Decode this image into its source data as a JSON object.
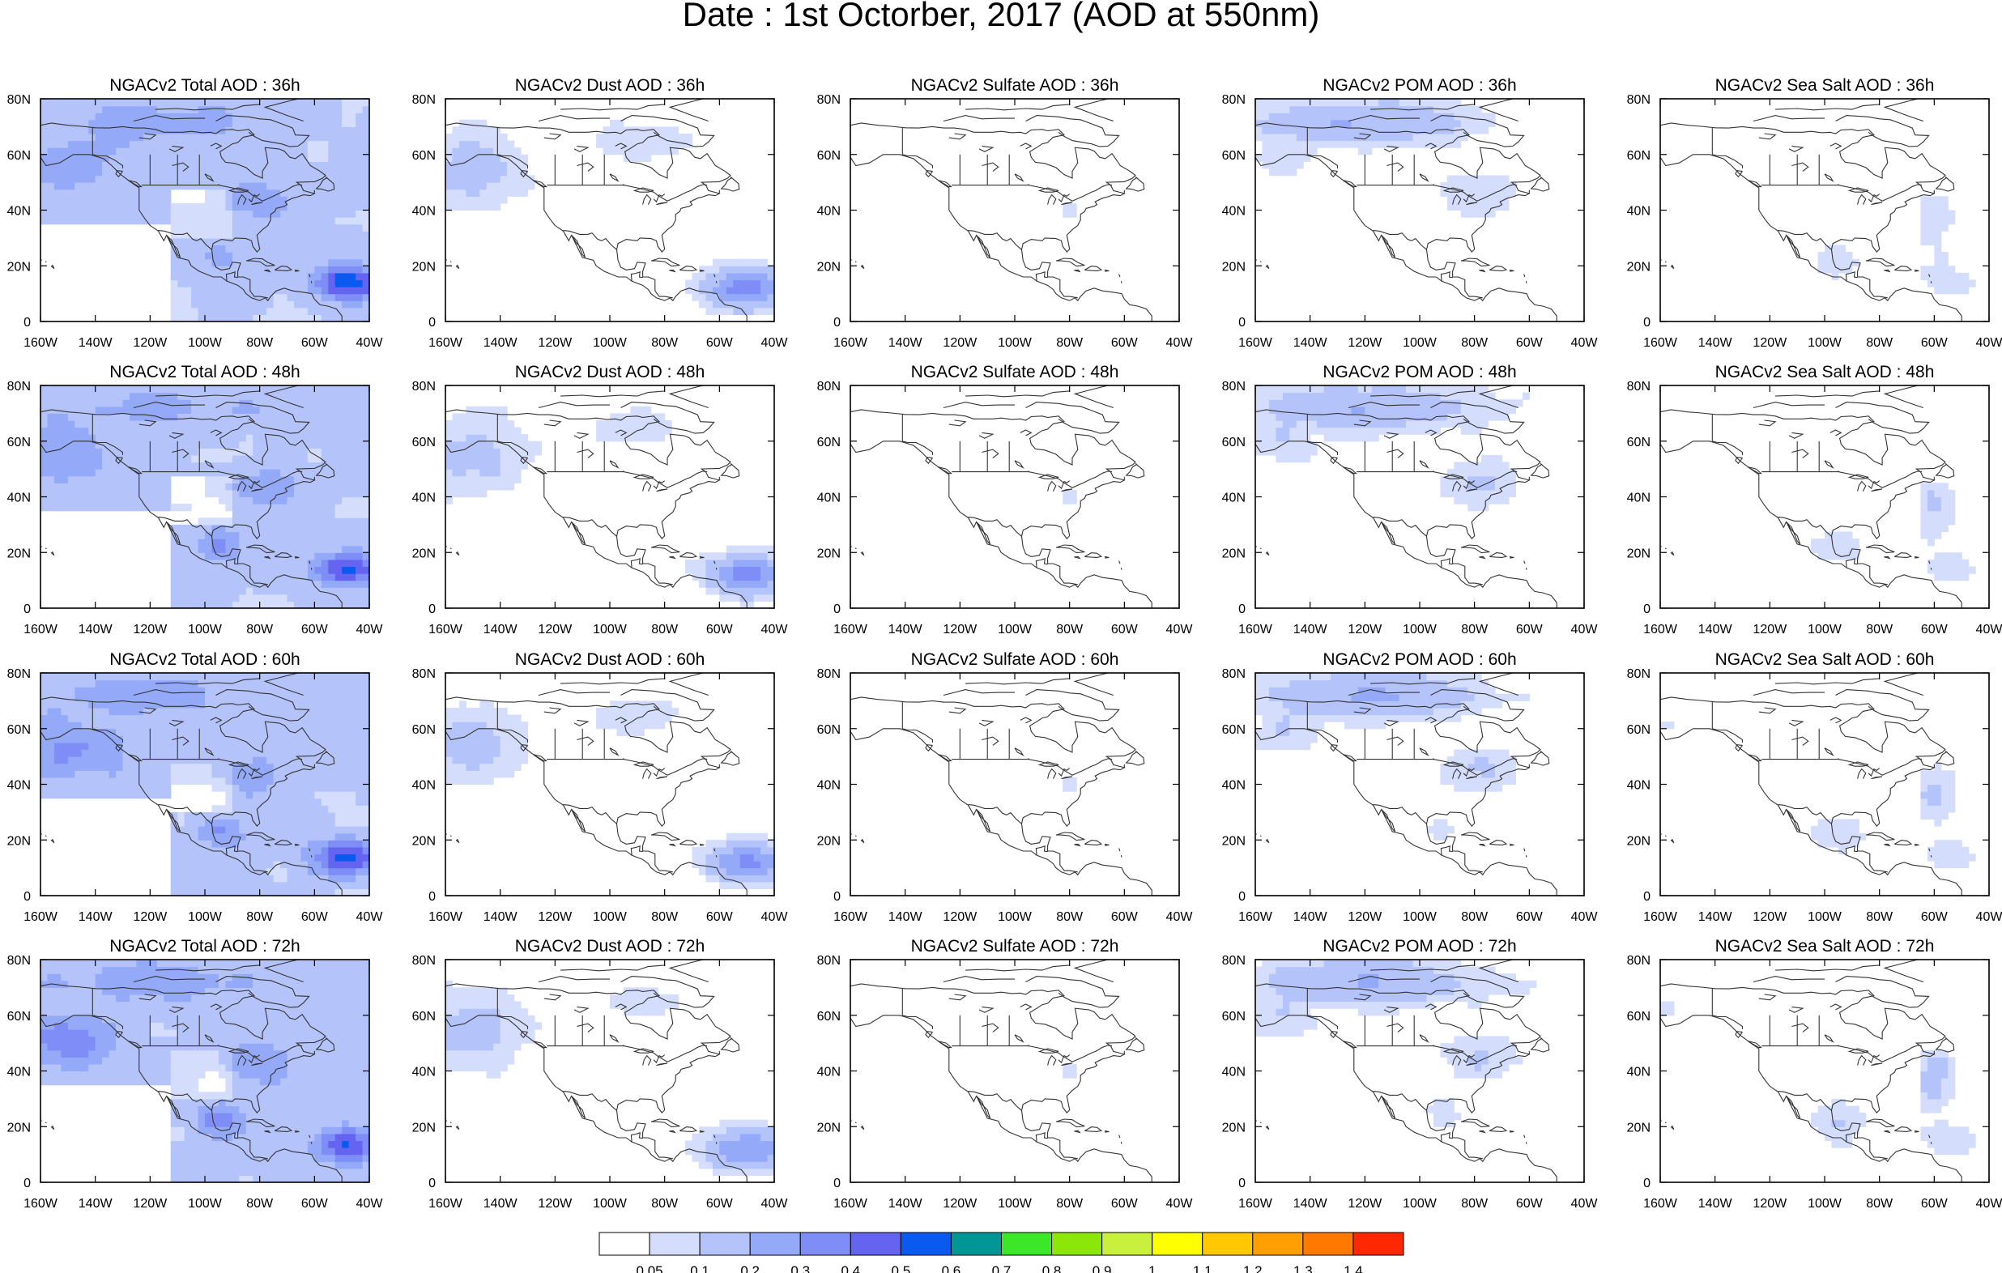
{
  "title": "Date : 1st Octorber, 2017 (AOD at 550nm)",
  "panels": [
    {
      "title": "NGACv2 Total AOD : 36h",
      "species": "total",
      "forecast_hour": 36
    },
    {
      "title": "NGACv2 Dust AOD : 36h",
      "species": "dust",
      "forecast_hour": 36
    },
    {
      "title": "NGACv2 Sulfate AOD : 36h",
      "species": "sulfate",
      "forecast_hour": 36
    },
    {
      "title": "NGACv2 POM AOD : 36h",
      "species": "pom",
      "forecast_hour": 36
    },
    {
      "title": "NGACv2 Sea Salt AOD : 36h",
      "species": "seasalt",
      "forecast_hour": 36
    },
    {
      "title": "NGACv2 Total AOD : 48h",
      "species": "total",
      "forecast_hour": 48
    },
    {
      "title": "NGACv2 Dust AOD : 48h",
      "species": "dust",
      "forecast_hour": 48
    },
    {
      "title": "NGACv2 Sulfate AOD : 48h",
      "species": "sulfate",
      "forecast_hour": 48
    },
    {
      "title": "NGACv2 POM AOD : 48h",
      "species": "pom",
      "forecast_hour": 48
    },
    {
      "title": "NGACv2 Sea Salt AOD : 48h",
      "species": "seasalt",
      "forecast_hour": 48
    },
    {
      "title": "NGACv2 Total AOD : 60h",
      "species": "total",
      "forecast_hour": 60
    },
    {
      "title": "NGACv2 Dust AOD : 60h",
      "species": "dust",
      "forecast_hour": 60
    },
    {
      "title": "NGACv2 Sulfate AOD : 60h",
      "species": "sulfate",
      "forecast_hour": 60
    },
    {
      "title": "NGACv2 POM AOD : 60h",
      "species": "pom",
      "forecast_hour": 60
    },
    {
      "title": "NGACv2 Sea Salt AOD : 60h",
      "species": "seasalt",
      "forecast_hour": 60
    },
    {
      "title": "NGACv2 Total AOD : 72h",
      "species": "total",
      "forecast_hour": 72
    },
    {
      "title": "NGACv2 Dust AOD : 72h",
      "species": "dust",
      "forecast_hour": 72
    },
    {
      "title": "NGACv2 Sulfate AOD : 72h",
      "species": "sulfate",
      "forecast_hour": 72
    },
    {
      "title": "NGACv2 POM AOD : 72h",
      "species": "pom",
      "forecast_hour": 72
    },
    {
      "title": "NGACv2 Sea Salt  AOD : 72h",
      "species": "seasalt",
      "forecast_hour": 72
    }
  ],
  "lon_ticks": [
    "160W",
    "140W",
    "120W",
    "100W",
    "80W",
    "60W",
    "40W"
  ],
  "lat_ticks": [
    "0",
    "20N",
    "40N",
    "60N",
    "80N"
  ],
  "lon_range": [
    -160,
    -40
  ],
  "lat_range": [
    0,
    80
  ],
  "colorbar": {
    "colors": [
      "#ffffff",
      "#d4defc",
      "#b4c4fa",
      "#94aaf8",
      "#7f8ef6",
      "#6464f0",
      "#0a5af0",
      "#009696",
      "#3ce628",
      "#8ce60a",
      "#c8f03c",
      "#ffff00",
      "#ffc800",
      "#ffa000",
      "#ff7800",
      "#ff2800"
    ],
    "labels": [
      "0.05",
      "0.1",
      "0.2",
      "0.3",
      "0.4",
      "0.5",
      "0.6",
      "0.7",
      "0.8",
      "0.9",
      "1",
      "1.1",
      "1.2",
      "1.3",
      "1.4"
    ]
  },
  "colors": {
    "coast": "#333333",
    "frame": "#000000"
  }
}
